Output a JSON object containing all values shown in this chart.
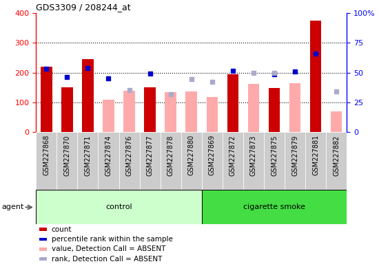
{
  "title": "GDS3309 / 208244_at",
  "samples": [
    "GSM227868",
    "GSM227870",
    "GSM227871",
    "GSM227874",
    "GSM227876",
    "GSM227877",
    "GSM227878",
    "GSM227880",
    "GSM227869",
    "GSM227872",
    "GSM227873",
    "GSM227875",
    "GSM227879",
    "GSM227881",
    "GSM227882"
  ],
  "groups": [
    "control",
    "control",
    "control",
    "control",
    "control",
    "control",
    "control",
    "control",
    "cigarette smoke",
    "cigarette smoke",
    "cigarette smoke",
    "cigarette smoke",
    "cigarette smoke",
    "cigarette smoke",
    "cigarette smoke"
  ],
  "count_values": [
    220,
    150,
    245,
    null,
    null,
    150,
    null,
    null,
    null,
    195,
    null,
    148,
    null,
    375,
    null
  ],
  "rank_values": [
    213,
    185,
    215,
    180,
    null,
    197,
    null,
    null,
    null,
    207,
    null,
    195,
    203,
    265,
    null
  ],
  "absent_value": [
    null,
    null,
    null,
    108,
    140,
    null,
    135,
    137,
    117,
    null,
    163,
    null,
    165,
    null,
    70
  ],
  "absent_rank": [
    null,
    null,
    null,
    null,
    142,
    null,
    127,
    178,
    170,
    null,
    198,
    200,
    null,
    null,
    137
  ],
  "n_control": 8,
  "n_smoke": 7,
  "ylim_left": [
    0,
    400
  ],
  "ylim_right": [
    0,
    100
  ],
  "yticks_left": [
    0,
    100,
    200,
    300,
    400
  ],
  "yticks_right": [
    0,
    25,
    50,
    75,
    100
  ],
  "color_count": "#cc0000",
  "color_rank": "#0000cc",
  "color_absent_value": "#ffaaaa",
  "color_absent_rank": "#aaaacc",
  "color_control_bg_light": "#ccffcc",
  "color_control_bg_dark": "#55dd55",
  "color_smoke_bg": "#44dd44",
  "color_xticklabels_bg": "#cccccc",
  "agent_label": "agent",
  "control_label": "control",
  "smoke_label": "cigarette smoke"
}
